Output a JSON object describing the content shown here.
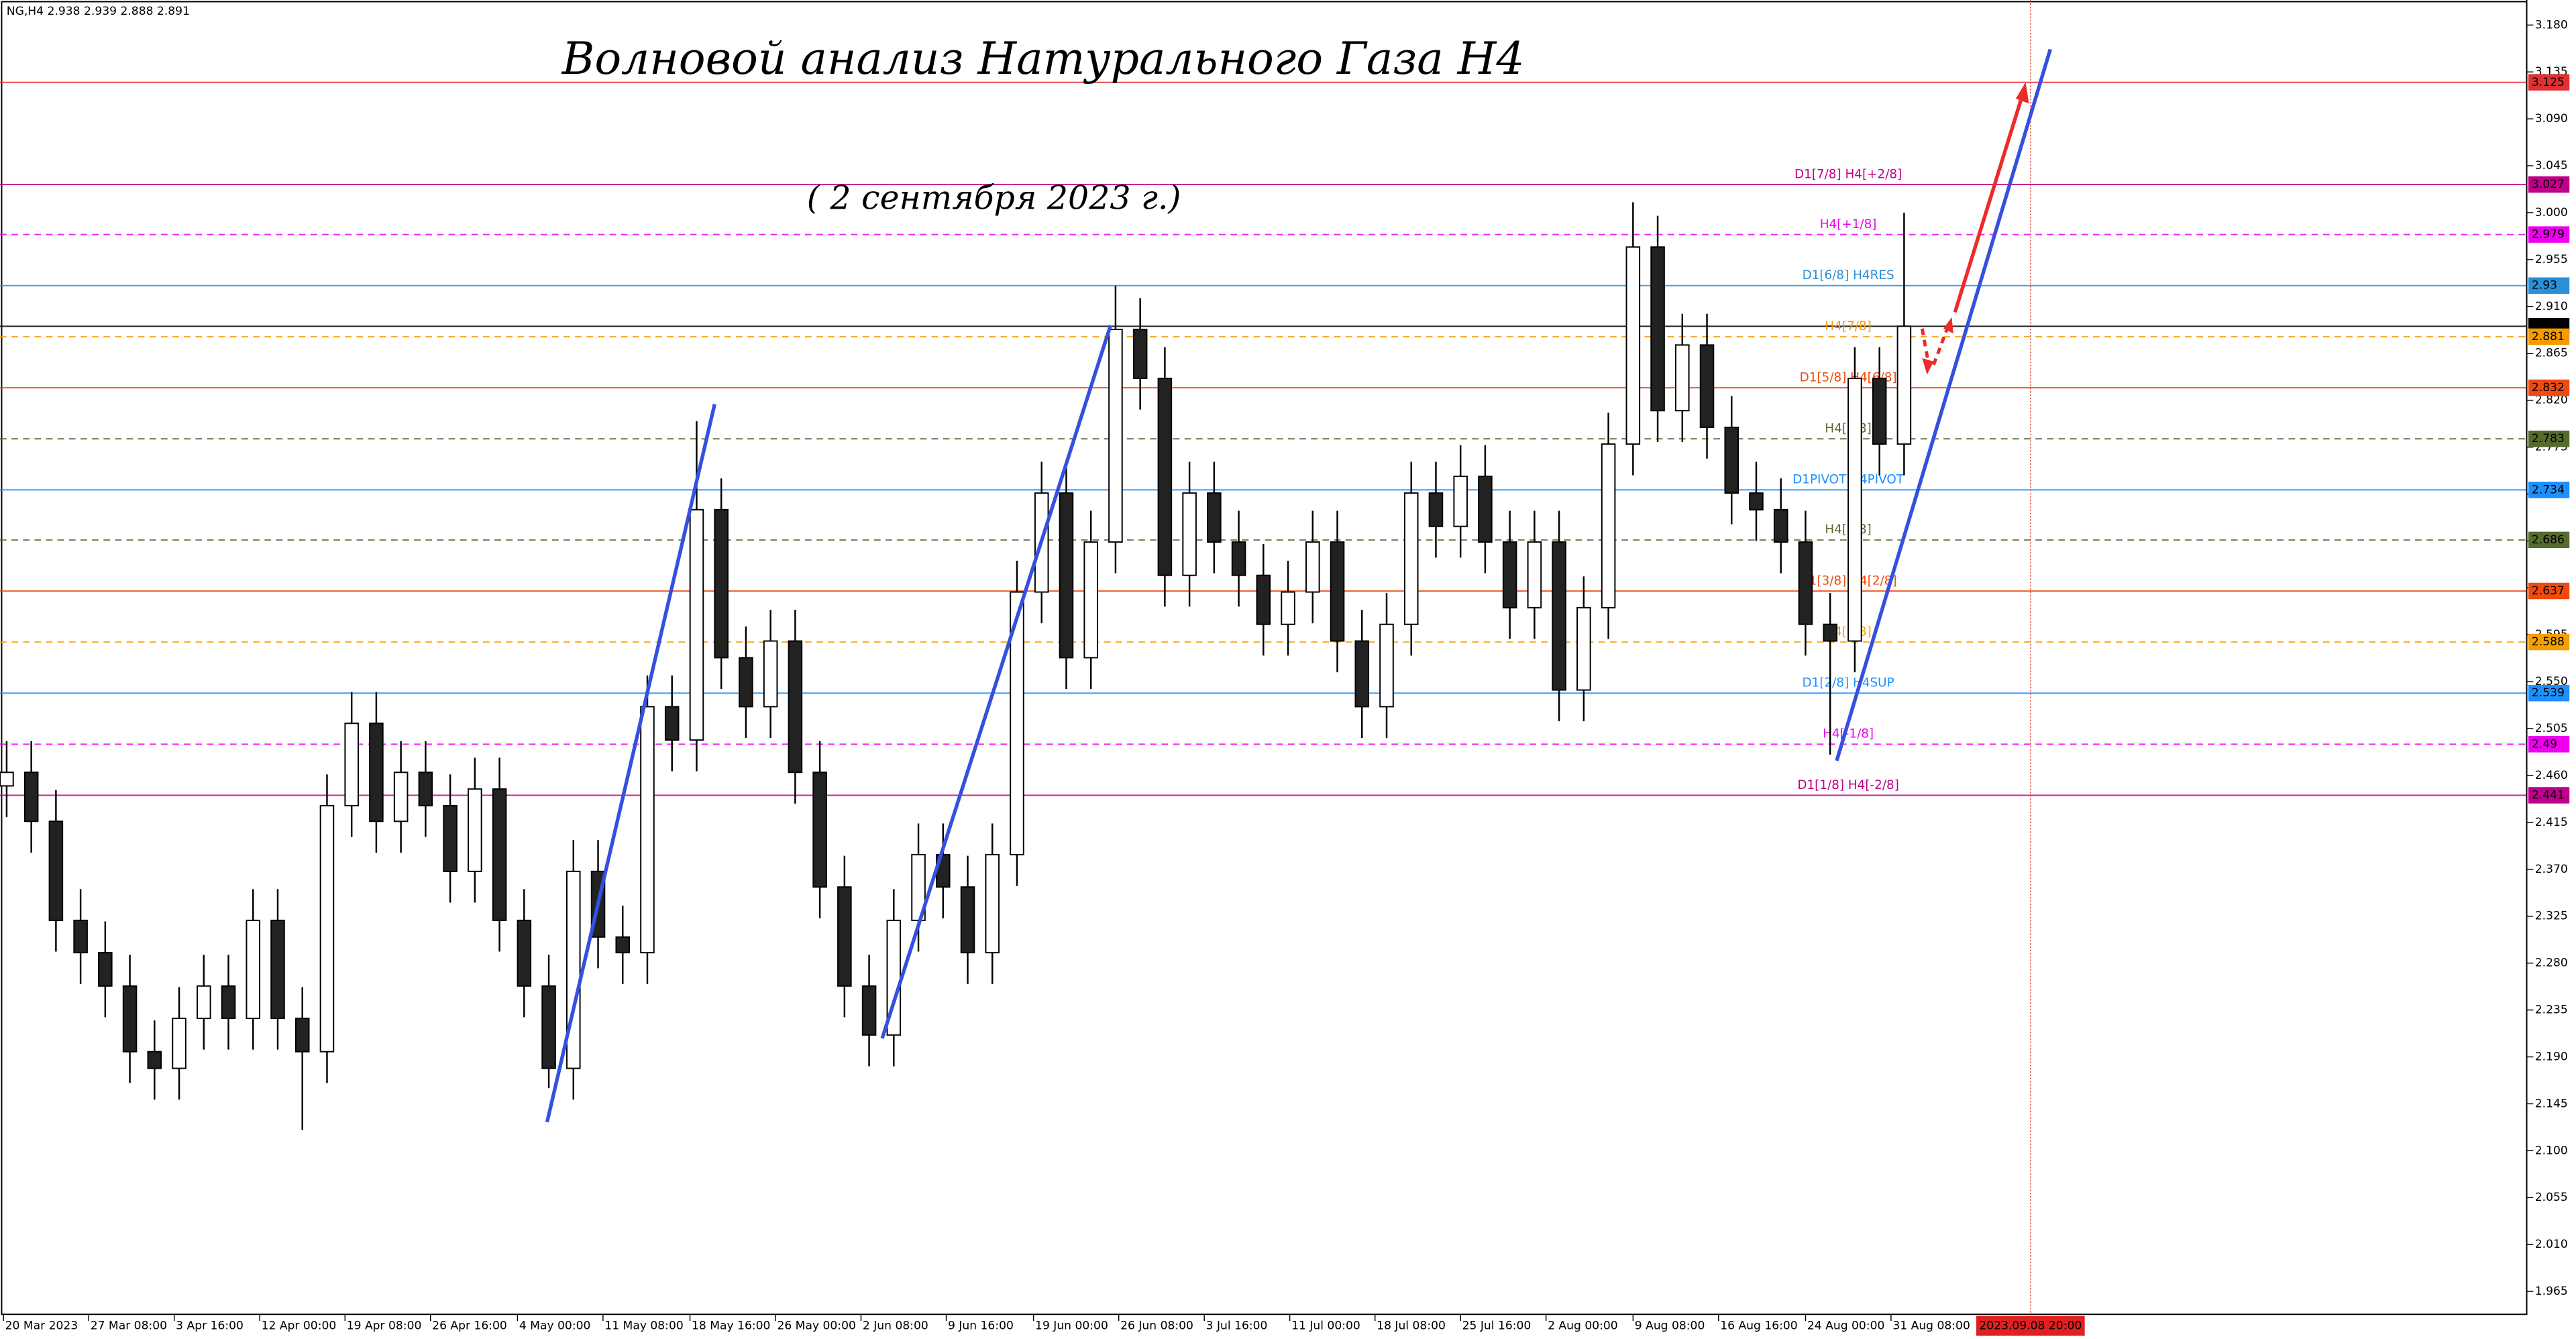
{
  "chart_data": {
    "type": "candlestick",
    "header": "NG,H4  2.938 2.939 2.888 2.891",
    "title": "Волновой анализ Натурального Газа H4",
    "subtitle": "( 2 сентября 2023 г.)",
    "open": [
      2.45,
      2.463,
      2.416,
      2.321,
      2.29,
      2.258,
      2.195,
      2.179,
      2.227,
      2.258,
      2.227,
      2.321,
      2.227,
      2.195,
      2.431,
      2.51,
      2.416,
      2.463,
      2.431,
      2.368,
      2.447,
      2.321,
      2.258,
      2.179,
      2.368,
      2.305,
      2.29,
      2.526,
      2.494,
      2.715,
      2.573,
      2.526,
      2.589,
      2.463,
      2.353,
      2.258,
      2.211,
      2.321,
      2.384,
      2.353,
      2.29,
      2.384,
      2.636,
      2.731,
      2.573,
      2.684,
      2.888,
      2.841,
      2.652,
      2.731,
      2.684,
      2.652,
      2.605,
      2.636,
      2.684,
      2.589,
      2.526,
      2.605,
      2.731,
      2.699,
      2.747,
      2.684,
      2.621,
      2.684,
      2.542,
      2.621,
      2.778,
      2.967,
      2.81,
      2.873,
      2.794,
      2.731,
      2.715,
      2.684,
      2.605,
      2.589,
      2.841,
      2.778
    ],
    "high": [
      2.493,
      2.493,
      2.446,
      2.351,
      2.32,
      2.288,
      2.225,
      2.257,
      2.288,
      2.288,
      2.351,
      2.351,
      2.257,
      2.461,
      2.54,
      2.54,
      2.493,
      2.493,
      2.461,
      2.477,
      2.477,
      2.351,
      2.288,
      2.398,
      2.398,
      2.335,
      2.556,
      2.556,
      2.8,
      2.745,
      2.603,
      2.619,
      2.619,
      2.493,
      2.383,
      2.288,
      2.351,
      2.414,
      2.414,
      2.383,
      2.414,
      2.666,
      2.761,
      2.761,
      2.714,
      2.93,
      2.918,
      2.871,
      2.761,
      2.761,
      2.714,
      2.682,
      2.666,
      2.714,
      2.714,
      2.619,
      2.635,
      2.761,
      2.761,
      2.777,
      2.777,
      2.714,
      2.714,
      2.714,
      2.651,
      2.808,
      3.01,
      2.997,
      2.903,
      2.903,
      2.824,
      2.761,
      2.745,
      2.714,
      2.635,
      2.871,
      2.871,
      3.0
    ],
    "low": [
      2.42,
      2.386,
      2.291,
      2.26,
      2.228,
      2.165,
      2.149,
      2.149,
      2.197,
      2.197,
      2.197,
      2.197,
      2.12,
      2.165,
      2.401,
      2.386,
      2.386,
      2.401,
      2.338,
      2.338,
      2.291,
      2.228,
      2.16,
      2.149,
      2.275,
      2.26,
      2.26,
      2.464,
      2.464,
      2.543,
      2.496,
      2.496,
      2.433,
      2.323,
      2.228,
      2.181,
      2.181,
      2.291,
      2.323,
      2.26,
      2.26,
      2.354,
      2.606,
      2.543,
      2.543,
      2.654,
      2.811,
      2.622,
      2.622,
      2.654,
      2.622,
      2.575,
      2.575,
      2.606,
      2.559,
      2.496,
      2.496,
      2.575,
      2.669,
      2.669,
      2.654,
      2.591,
      2.591,
      2.512,
      2.512,
      2.591,
      2.748,
      2.78,
      2.78,
      2.764,
      2.701,
      2.685,
      2.654,
      2.575,
      2.48,
      2.559,
      2.748,
      2.748
    ],
    "close": [
      2.463,
      2.416,
      2.321,
      2.29,
      2.258,
      2.195,
      2.179,
      2.227,
      2.258,
      2.227,
      2.321,
      2.227,
      2.195,
      2.431,
      2.51,
      2.416,
      2.463,
      2.431,
      2.368,
      2.447,
      2.321,
      2.258,
      2.179,
      2.368,
      2.305,
      2.29,
      2.526,
      2.494,
      2.715,
      2.573,
      2.526,
      2.589,
      2.463,
      2.353,
      2.258,
      2.211,
      2.321,
      2.384,
      2.353,
      2.29,
      2.384,
      2.636,
      2.731,
      2.573,
      2.684,
      2.888,
      2.841,
      2.652,
      2.731,
      2.684,
      2.652,
      2.605,
      2.636,
      2.684,
      2.589,
      2.526,
      2.605,
      2.731,
      2.699,
      2.747,
      2.684,
      2.621,
      2.684,
      2.542,
      2.621,
      2.778,
      2.967,
      2.81,
      2.873,
      2.794,
      2.731,
      2.715,
      2.684,
      2.605,
      2.589,
      2.841,
      2.778,
      2.891
    ],
    "xlim": [
      -0.27,
      102.2
    ],
    "xticks": [
      {
        "value": -0.13,
        "label": "20 Mar 2023"
      },
      {
        "value": 3.33,
        "label": "27 Mar 08:00"
      },
      {
        "value": 6.8,
        "label": "3 Apr 16:00"
      },
      {
        "value": 10.27,
        "label": "12 Apr 00:00"
      },
      {
        "value": 13.73,
        "label": "19 Apr 08:00"
      },
      {
        "value": 17.2,
        "label": "26 Apr 16:00"
      },
      {
        "value": 20.73,
        "label": "4 May 00:00"
      },
      {
        "value": 24.2,
        "label": "11 May 08:00"
      },
      {
        "value": 27.73,
        "label": "18 May 16:00"
      },
      {
        "value": 31.2,
        "label": "26 May 00:00"
      },
      {
        "value": 34.67,
        "label": "2 Jun 08:00"
      },
      {
        "value": 38.13,
        "label": "9 Jun 16:00"
      },
      {
        "value": 41.67,
        "label": "19 Jun 00:00"
      },
      {
        "value": 45.13,
        "label": "26 Jun 08:00"
      },
      {
        "value": 48.6,
        "label": "3 Jul 16:00"
      },
      {
        "value": 52.07,
        "label": "11 Jul 00:00"
      },
      {
        "value": 55.53,
        "label": "18 Jul 08:00"
      },
      {
        "value": 59,
        "label": "25 Jul 16:00"
      },
      {
        "value": 62.47,
        "label": "2 Aug 00:00"
      },
      {
        "value": 66,
        "label": "9 Aug 08:00"
      },
      {
        "value": 69.47,
        "label": "16 Aug 16:00"
      },
      {
        "value": 73,
        "label": "24 Aug 00:00"
      },
      {
        "value": 76.47,
        "label": "31 Aug 08:00"
      }
    ],
    "cursor": {
      "value": 82.13,
      "label": "2023.09.08 20:00"
    },
    "ylim": [
      1.943,
      3.204
    ],
    "yticks": [
      {
        "value": 3.18,
        "label": "3.180"
      },
      3.135,
      {
        "value": 3.09,
        "label": "3.090"
      },
      3.045,
      {
        "value": 3.0,
        "label": "3.000"
      },
      2.955,
      {
        "value": 2.91,
        "label": "2.910"
      },
      2.865,
      {
        "value": 2.82,
        "label": "2.820"
      },
      2.775,
      {
        "value": 2.73,
        "label": "2.730"
      },
      2.685,
      {
        "value": 2.64,
        "label": "2.640"
      },
      2.595,
      {
        "value": 2.55,
        "label": "2.550"
      },
      2.505,
      {
        "value": 2.46,
        "label": "2.460"
      },
      2.415,
      {
        "value": 2.37,
        "label": "2.370"
      },
      2.325,
      {
        "value": 2.28,
        "label": "2.280"
      },
      2.235,
      {
        "value": 2.19,
        "label": "2.190"
      },
      2.145,
      {
        "value": 2.1,
        "label": "2.100"
      },
      2.055,
      {
        "value": 2.01,
        "label": "2.010"
      },
      1.965
    ],
    "levels": [
      {
        "value": 3.125,
        "color": "#e03030",
        "dash": false
      },
      {
        "value": 3.027,
        "color": "#c0008a",
        "dash": false,
        "name": "D1[7/8] H4[+2/8]"
      },
      {
        "value": 2.979,
        "color": "#ee00ee",
        "dash": true,
        "name": "H4[+1/8]"
      },
      {
        "value": 2.93,
        "color": "#2a8fd6",
        "dash": false,
        "name": "D1[6/8] H4RES"
      },
      {
        "value": 2.891,
        "color": "#000000",
        "dash": false
      },
      {
        "value": 2.881,
        "color": "#f59a00",
        "dash": true,
        "name": "H4[7/8]"
      },
      {
        "value": 2.832,
        "color": "#f04a10",
        "dash": false,
        "name": "D1[5/8] H4[6/8]"
      },
      {
        "value": 2.783,
        "color": "#556b2f",
        "dash": true,
        "name": "H4[5/8]"
      },
      {
        "value": 2.734,
        "color": "#1e8fff",
        "dash": false,
        "name": "D1PIVOT H4PIVOT"
      },
      {
        "value": 2.686,
        "color": "#556b2f",
        "dash": true,
        "name": "H4[3/8]"
      },
      {
        "value": 2.637,
        "color": "#f04a10",
        "dash": false,
        "name": "D1[3/8] H4[2/8]"
      },
      {
        "value": 2.588,
        "color": "#f5a000",
        "dash": true,
        "name": "H4[1/8]"
      },
      {
        "value": 2.539,
        "color": "#1e8fff",
        "dash": false,
        "name": "D1[2/8] H4SUP"
      },
      {
        "value": 2.49,
        "color": "#ee00ee",
        "dash": true,
        "name": "H4[-1/8]"
      },
      {
        "value": 2.441,
        "color": "#c0008a",
        "dash": false,
        "name": "D1[1/8] H4[-2/8]"
      }
    ]
  }
}
